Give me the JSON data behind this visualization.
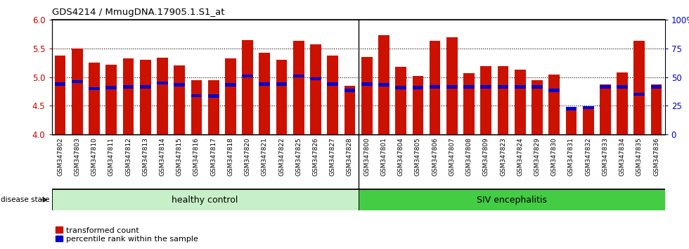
{
  "title": "GDS4214 / MmugDNA.17905.1.S1_at",
  "categories": [
    "GSM347802",
    "GSM347803",
    "GSM347810",
    "GSM347811",
    "GSM347812",
    "GSM347813",
    "GSM347814",
    "GSM347815",
    "GSM347816",
    "GSM347817",
    "GSM347818",
    "GSM347820",
    "GSM347821",
    "GSM347822",
    "GSM347825",
    "GSM347826",
    "GSM347827",
    "GSM347828",
    "GSM347800",
    "GSM347801",
    "GSM347804",
    "GSM347805",
    "GSM347806",
    "GSM347807",
    "GSM347808",
    "GSM347809",
    "GSM347823",
    "GSM347824",
    "GSM347829",
    "GSM347830",
    "GSM347831",
    "GSM347832",
    "GSM347833",
    "GSM347834",
    "GSM347835",
    "GSM347836"
  ],
  "bar_values": [
    5.38,
    5.5,
    5.25,
    5.22,
    5.33,
    5.3,
    5.34,
    5.21,
    4.95,
    4.95,
    5.33,
    5.65,
    5.43,
    5.3,
    5.63,
    5.58,
    5.38,
    4.85,
    5.35,
    5.73,
    5.18,
    5.02,
    5.63,
    5.7,
    5.07,
    5.19,
    5.19,
    5.13,
    4.95,
    5.05,
    4.45,
    4.45,
    4.87,
    5.08,
    5.63,
    4.87
  ],
  "percentile_values": [
    4.88,
    4.92,
    4.8,
    4.82,
    4.83,
    4.83,
    4.9,
    4.87,
    4.68,
    4.67,
    4.87,
    5.02,
    4.88,
    4.88,
    5.02,
    4.97,
    4.88,
    4.77,
    4.88,
    4.87,
    4.82,
    4.82,
    4.83,
    4.83,
    4.83,
    4.83,
    4.83,
    4.83,
    4.83,
    4.77,
    4.45,
    4.47,
    4.83,
    4.83,
    4.7,
    4.83
  ],
  "group_split": 18,
  "group_label_healthy": "healthy control",
  "group_label_siv": "SIV encephalitis",
  "group_color_healthy": "#c8f0c8",
  "group_color_siv": "#44cc44",
  "bar_color": "#cc1100",
  "percentile_color": "#0000cc",
  "ylim": [
    4.0,
    6.0
  ],
  "yticks": [
    4.0,
    4.5,
    5.0,
    5.5,
    6.0
  ],
  "right_ytick_labels": [
    "0",
    "25",
    "50",
    "75",
    "100%"
  ],
  "right_ytick_vals": [
    0,
    25,
    50,
    75,
    100
  ],
  "ylabel_color": "#cc0000",
  "right_ylabel_color": "#0000cc",
  "disease_state_label": "disease state",
  "legend_transformed_count": "transformed count",
  "legend_percentile": "percentile rank within the sample",
  "xticklabel_bg": "#d8d8d8",
  "plot_bg": "#ffffff"
}
